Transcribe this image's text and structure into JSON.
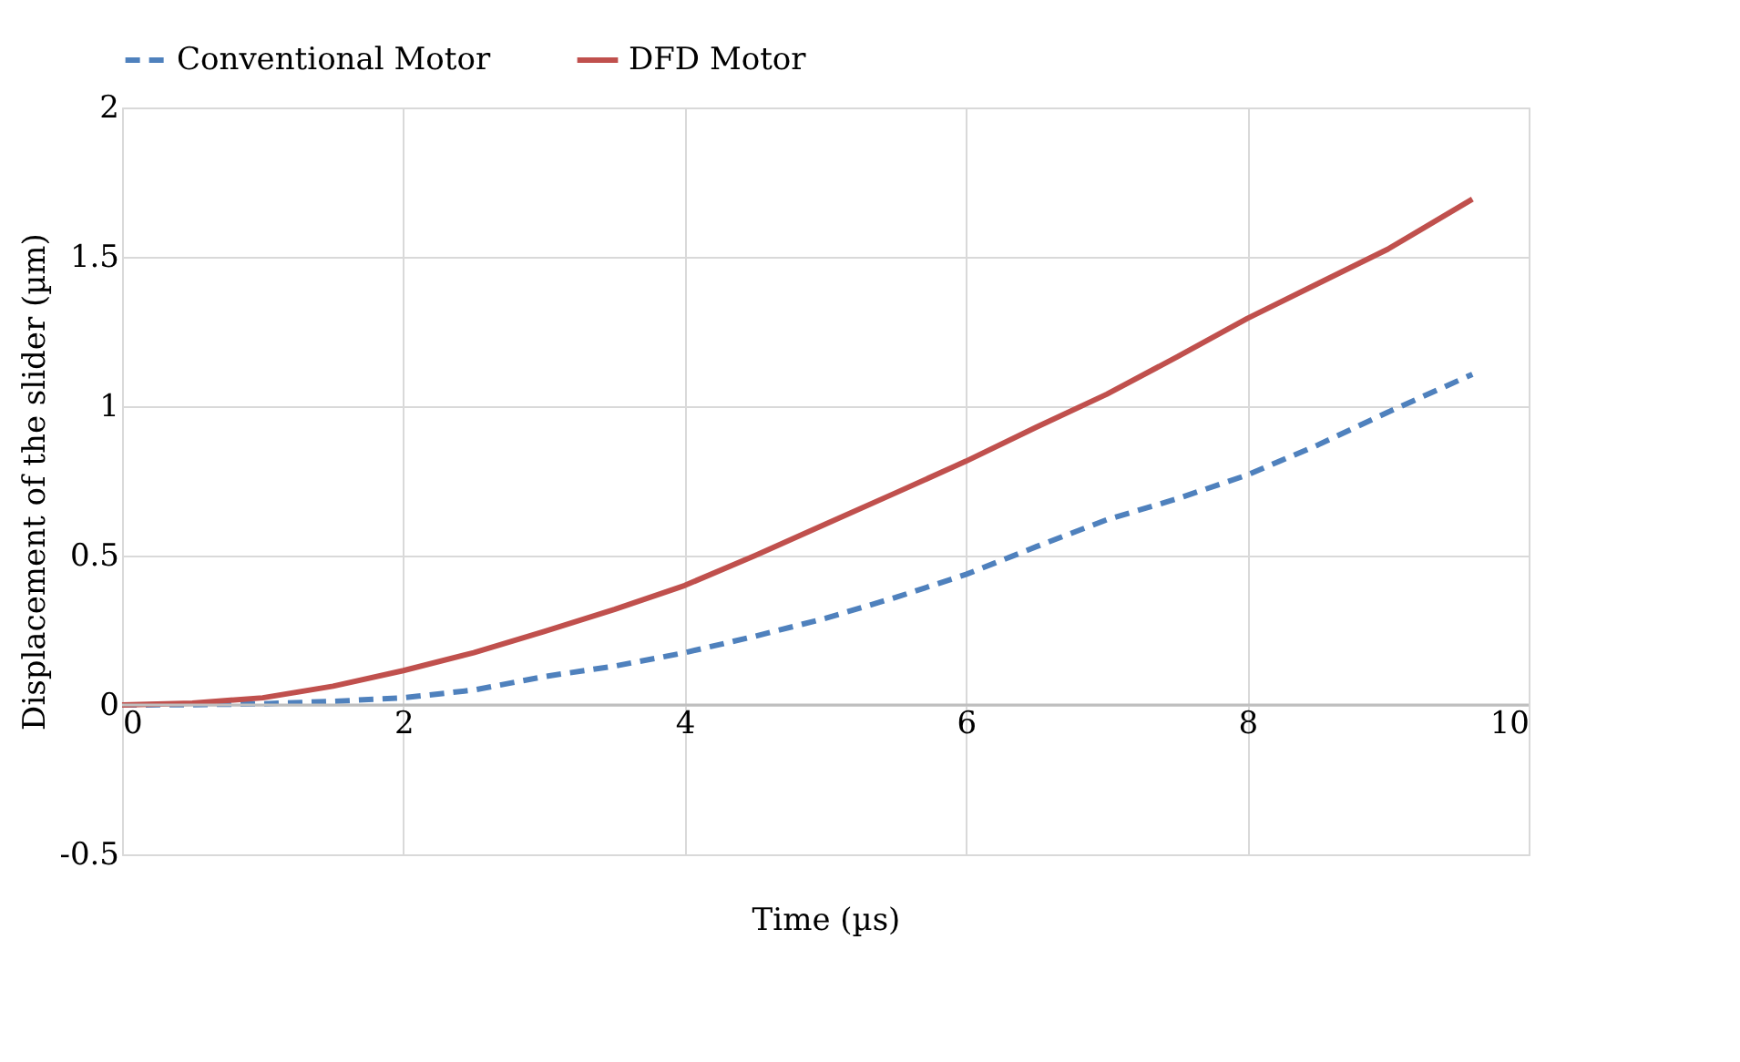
{
  "chart_data": {
    "type": "line",
    "xlabel": "Time (µs)",
    "ylabel": "Displacement of the slider (µm)",
    "x": [
      0,
      0.5,
      1,
      1.5,
      2,
      2.5,
      3,
      3.5,
      4,
      4.5,
      5,
      5.5,
      6,
      6.5,
      7,
      7.5,
      8,
      8.5,
      9,
      9.6
    ],
    "series": [
      {
        "name": "Conventional Motor",
        "color": "#4f81bd",
        "line_style": "dashed",
        "values": [
          0,
          0.001,
          0.004,
          0.012,
          0.024,
          0.05,
          0.095,
          0.13,
          0.175,
          0.23,
          0.29,
          0.36,
          0.437,
          0.53,
          0.62,
          0.69,
          0.77,
          0.87,
          0.98,
          1.107
        ]
      },
      {
        "name": "DFD Motor",
        "color": "#c0504d",
        "line_style": "solid",
        "values": [
          0,
          0.006,
          0.024,
          0.063,
          0.115,
          0.175,
          0.246,
          0.32,
          0.4,
          0.5,
          0.605,
          0.71,
          0.816,
          0.93,
          1.04,
          1.165,
          1.294,
          1.41,
          1.526,
          1.693
        ]
      }
    ],
    "xlim": [
      0,
      10
    ],
    "xticks": [
      0,
      2,
      4,
      6,
      8,
      10
    ],
    "ylim": [
      -0.5,
      2
    ],
    "yticks": [
      -0.5,
      0,
      0.5,
      1,
      1.5,
      2
    ],
    "grid": true,
    "legend": "top",
    "marker": "none"
  }
}
